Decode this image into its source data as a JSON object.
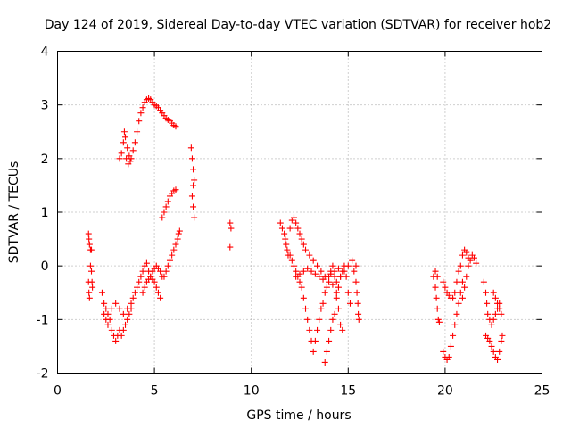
{
  "chart_data": {
    "type": "scatter",
    "title": "Day 124 of 2019, Sidereal Day-to-day VTEC variation (SDTVAR) for receiver hob2",
    "xlabel": "GPS time / hours",
    "ylabel": "SDTVAR / TECUs",
    "xlim": [
      0,
      25
    ],
    "ylim": [
      -2,
      4
    ],
    "xticks": [
      0,
      5,
      10,
      15,
      20,
      25
    ],
    "yticks": [
      -2,
      -1,
      0,
      1,
      2,
      3,
      4
    ],
    "grid": true,
    "marker": "+",
    "color": "#ff0000",
    "series": [
      {
        "name": "SDTVAR",
        "points": [
          [
            1.6,
            0.6
          ],
          [
            1.62,
            0.5
          ],
          [
            1.65,
            0.4
          ],
          [
            1.7,
            0.3
          ],
          [
            1.75,
            0.3
          ],
          [
            1.6,
            -0.3
          ],
          [
            1.62,
            -0.5
          ],
          [
            1.65,
            -0.6
          ],
          [
            1.7,
            0.0
          ],
          [
            1.75,
            -0.1
          ],
          [
            1.78,
            -0.3
          ],
          [
            1.8,
            -0.4
          ],
          [
            2.3,
            -0.5
          ],
          [
            2.4,
            -0.7
          ],
          [
            2.5,
            -0.8
          ],
          [
            2.6,
            -0.9
          ],
          [
            2.7,
            -1.0
          ],
          [
            2.8,
            -1.2
          ],
          [
            2.9,
            -1.3
          ],
          [
            3.0,
            -1.4
          ],
          [
            3.1,
            -1.3
          ],
          [
            3.2,
            -1.2
          ],
          [
            2.4,
            -0.9
          ],
          [
            2.5,
            -1.0
          ],
          [
            2.6,
            -1.1
          ],
          [
            2.8,
            -0.8
          ],
          [
            3.0,
            -0.7
          ],
          [
            3.2,
            -0.8
          ],
          [
            3.4,
            -0.9
          ],
          [
            3.6,
            -0.8
          ],
          [
            3.8,
            -0.7
          ],
          [
            3.3,
            -1.3
          ],
          [
            3.4,
            -1.2
          ],
          [
            3.5,
            -1.1
          ],
          [
            3.6,
            -1.0
          ],
          [
            3.7,
            -0.9
          ],
          [
            3.8,
            -0.8
          ],
          [
            3.9,
            -0.6
          ],
          [
            4.0,
            -0.5
          ],
          [
            4.1,
            -0.4
          ],
          [
            4.2,
            -0.3
          ],
          [
            4.3,
            -0.2
          ],
          [
            4.4,
            -0.1
          ],
          [
            4.5,
            0.0
          ],
          [
            4.6,
            0.05
          ],
          [
            4.7,
            -0.1
          ],
          [
            4.8,
            -0.2
          ],
          [
            4.9,
            -0.25
          ],
          [
            5.0,
            -0.3
          ],
          [
            5.1,
            -0.4
          ],
          [
            5.2,
            -0.5
          ],
          [
            5.3,
            -0.6
          ],
          [
            4.4,
            -0.5
          ],
          [
            4.5,
            -0.4
          ],
          [
            4.6,
            -0.3
          ],
          [
            4.7,
            -0.25
          ],
          [
            4.8,
            -0.2
          ],
          [
            4.9,
            -0.1
          ],
          [
            5.0,
            -0.05
          ],
          [
            5.1,
            0.0
          ],
          [
            5.2,
            -0.05
          ],
          [
            5.3,
            -0.1
          ],
          [
            5.4,
            -0.2
          ],
          [
            5.5,
            -0.2
          ],
          [
            5.6,
            -0.1
          ],
          [
            5.7,
            0.0
          ],
          [
            5.8,
            0.1
          ],
          [
            5.9,
            0.2
          ],
          [
            6.0,
            0.3
          ],
          [
            6.1,
            0.4
          ],
          [
            6.2,
            0.5
          ],
          [
            6.25,
            0.6
          ],
          [
            6.3,
            0.65
          ],
          [
            3.2,
            2.0
          ],
          [
            3.3,
            2.1
          ],
          [
            3.4,
            2.3
          ],
          [
            3.45,
            2.5
          ],
          [
            3.5,
            2.4
          ],
          [
            3.6,
            2.2
          ],
          [
            3.7,
            2.05
          ],
          [
            3.8,
            2.0
          ],
          [
            3.9,
            2.15
          ],
          [
            4.0,
            2.3
          ],
          [
            3.55,
            2.0
          ],
          [
            3.65,
            1.9
          ],
          [
            3.75,
            1.95
          ],
          [
            4.1,
            2.5
          ],
          [
            4.2,
            2.7
          ],
          [
            4.3,
            2.85
          ],
          [
            4.4,
            2.95
          ],
          [
            4.5,
            3.05
          ],
          [
            4.6,
            3.1
          ],
          [
            4.7,
            3.12
          ],
          [
            4.8,
            3.1
          ],
          [
            4.9,
            3.05
          ],
          [
            5.0,
            3.0
          ],
          [
            5.1,
            2.98
          ],
          [
            5.2,
            2.95
          ],
          [
            5.3,
            2.9
          ],
          [
            5.4,
            2.85
          ],
          [
            5.5,
            2.8
          ],
          [
            5.6,
            2.75
          ],
          [
            5.7,
            2.72
          ],
          [
            5.8,
            2.7
          ],
          [
            5.9,
            2.66
          ],
          [
            6.0,
            2.62
          ],
          [
            6.1,
            2.6
          ],
          [
            5.4,
            0.9
          ],
          [
            5.5,
            1.0
          ],
          [
            5.6,
            1.1
          ],
          [
            5.7,
            1.2
          ],
          [
            5.8,
            1.3
          ],
          [
            5.9,
            1.35
          ],
          [
            6.0,
            1.4
          ],
          [
            6.1,
            1.42
          ],
          [
            6.9,
            2.2
          ],
          [
            6.95,
            2.0
          ],
          [
            7.0,
            1.8
          ],
          [
            7.05,
            1.6
          ],
          [
            7.0,
            1.5
          ],
          [
            6.95,
            1.3
          ],
          [
            7.0,
            1.1
          ],
          [
            7.05,
            0.9
          ],
          [
            8.9,
            0.8
          ],
          [
            8.95,
            0.7
          ],
          [
            8.9,
            0.35
          ],
          [
            11.5,
            0.8
          ],
          [
            11.6,
            0.7
          ],
          [
            11.7,
            0.6
          ],
          [
            11.75,
            0.5
          ],
          [
            11.8,
            0.4
          ],
          [
            11.85,
            0.3
          ],
          [
            11.9,
            0.2
          ],
          [
            12.0,
            0.7
          ],
          [
            12.1,
            0.85
          ],
          [
            12.2,
            0.9
          ],
          [
            12.3,
            0.8
          ],
          [
            12.4,
            0.7
          ],
          [
            12.5,
            0.6
          ],
          [
            12.6,
            0.5
          ],
          [
            12.7,
            0.4
          ],
          [
            12.8,
            0.3
          ],
          [
            12.0,
            0.2
          ],
          [
            12.1,
            0.1
          ],
          [
            12.2,
            0.0
          ],
          [
            12.3,
            -0.1
          ],
          [
            12.4,
            -0.2
          ],
          [
            12.5,
            -0.3
          ],
          [
            12.6,
            -0.4
          ],
          [
            12.7,
            -0.6
          ],
          [
            12.8,
            -0.8
          ],
          [
            12.9,
            -1.0
          ],
          [
            13.0,
            -1.2
          ],
          [
            13.1,
            -1.4
          ],
          [
            12.3,
            -0.2
          ],
          [
            12.5,
            -0.15
          ],
          [
            12.7,
            -0.1
          ],
          [
            12.9,
            -0.05
          ],
          [
            13.1,
            -0.1
          ],
          [
            13.3,
            -0.15
          ],
          [
            13.5,
            -0.2
          ],
          [
            13.7,
            -0.25
          ],
          [
            13.9,
            -0.2
          ],
          [
            14.1,
            -0.15
          ],
          [
            14.3,
            -0.1
          ],
          [
            14.5,
            -0.05
          ],
          [
            13.0,
            0.2
          ],
          [
            13.2,
            0.1
          ],
          [
            13.4,
            0.0
          ],
          [
            13.6,
            -0.1
          ],
          [
            13.8,
            -0.2
          ],
          [
            14.0,
            -0.3
          ],
          [
            14.2,
            -0.35
          ],
          [
            14.4,
            -0.3
          ],
          [
            14.6,
            -0.2
          ],
          [
            14.8,
            -0.1
          ],
          [
            15.0,
            0.0
          ],
          [
            15.2,
            0.1
          ],
          [
            13.2,
            -1.6
          ],
          [
            13.3,
            -1.4
          ],
          [
            13.4,
            -1.2
          ],
          [
            13.5,
            -1.0
          ],
          [
            13.6,
            -0.8
          ],
          [
            13.7,
            -0.7
          ],
          [
            13.8,
            -0.5
          ],
          [
            13.9,
            -0.4
          ],
          [
            14.0,
            -0.2
          ],
          [
            14.1,
            -0.1
          ],
          [
            14.2,
            0.0
          ],
          [
            14.3,
            -0.2
          ],
          [
            14.4,
            -0.5
          ],
          [
            14.5,
            -0.8
          ],
          [
            14.6,
            -1.1
          ],
          [
            14.7,
            -1.2
          ],
          [
            13.8,
            -1.8
          ],
          [
            13.9,
            -1.6
          ],
          [
            14.0,
            -1.4
          ],
          [
            14.1,
            -1.2
          ],
          [
            14.2,
            -1.0
          ],
          [
            14.3,
            -0.9
          ],
          [
            14.4,
            -0.6
          ],
          [
            14.5,
            -0.4
          ],
          [
            14.6,
            -0.2
          ],
          [
            14.7,
            -0.1
          ],
          [
            14.8,
            0.0
          ],
          [
            14.9,
            -0.2
          ],
          [
            15.0,
            -0.5
          ],
          [
            15.1,
            -0.7
          ],
          [
            15.3,
            -0.1
          ],
          [
            15.4,
            -0.3
          ],
          [
            15.45,
            -0.5
          ],
          [
            15.5,
            -0.7
          ],
          [
            15.52,
            -0.9
          ],
          [
            15.55,
            -1.0
          ],
          [
            15.4,
            0.0
          ],
          [
            19.4,
            -0.2
          ],
          [
            19.5,
            -0.4
          ],
          [
            19.55,
            -0.6
          ],
          [
            19.6,
            -0.8
          ],
          [
            19.65,
            -1.0
          ],
          [
            19.7,
            -1.05
          ],
          [
            19.5,
            -0.1
          ],
          [
            19.6,
            -0.2
          ],
          [
            19.9,
            -1.6
          ],
          [
            20.0,
            -1.7
          ],
          [
            20.1,
            -1.75
          ],
          [
            20.2,
            -1.7
          ],
          [
            20.3,
            -1.5
          ],
          [
            20.4,
            -1.3
          ],
          [
            20.5,
            -1.1
          ],
          [
            20.6,
            -0.9
          ],
          [
            20.7,
            -0.7
          ],
          [
            20.8,
            -0.5
          ],
          [
            20.9,
            -0.3
          ],
          [
            19.9,
            -0.3
          ],
          [
            20.0,
            -0.4
          ],
          [
            20.1,
            -0.5
          ],
          [
            20.2,
            -0.55
          ],
          [
            20.3,
            -0.6
          ],
          [
            20.4,
            -0.6
          ],
          [
            20.5,
            -0.5
          ],
          [
            20.6,
            -0.3
          ],
          [
            20.7,
            -0.1
          ],
          [
            20.8,
            0.0
          ],
          [
            20.9,
            0.2
          ],
          [
            21.0,
            0.3
          ],
          [
            21.1,
            0.25
          ],
          [
            21.2,
            0.15
          ],
          [
            20.9,
            -0.6
          ],
          [
            21.0,
            -0.4
          ],
          [
            21.1,
            -0.2
          ],
          [
            21.2,
            0.0
          ],
          [
            21.3,
            0.1
          ],
          [
            21.4,
            0.2
          ],
          [
            21.5,
            0.15
          ],
          [
            21.6,
            0.05
          ],
          [
            22.0,
            -0.3
          ],
          [
            22.1,
            -0.5
          ],
          [
            22.15,
            -0.7
          ],
          [
            22.2,
            -0.9
          ],
          [
            22.3,
            -1.0
          ],
          [
            22.4,
            -1.1
          ],
          [
            22.5,
            -1.0
          ],
          [
            22.6,
            -0.9
          ],
          [
            22.7,
            -0.8
          ],
          [
            22.8,
            -0.7
          ],
          [
            22.1,
            -1.3
          ],
          [
            22.2,
            -1.35
          ],
          [
            22.3,
            -1.4
          ],
          [
            22.4,
            -1.5
          ],
          [
            22.5,
            -1.6
          ],
          [
            22.6,
            -1.7
          ],
          [
            22.7,
            -1.75
          ],
          [
            22.8,
            -1.6
          ],
          [
            22.9,
            -1.4
          ],
          [
            22.95,
            -1.3
          ],
          [
            22.5,
            -0.5
          ],
          [
            22.6,
            -0.6
          ],
          [
            22.7,
            -0.7
          ],
          [
            22.8,
            -0.8
          ],
          [
            22.9,
            -0.9
          ]
        ]
      }
    ]
  }
}
